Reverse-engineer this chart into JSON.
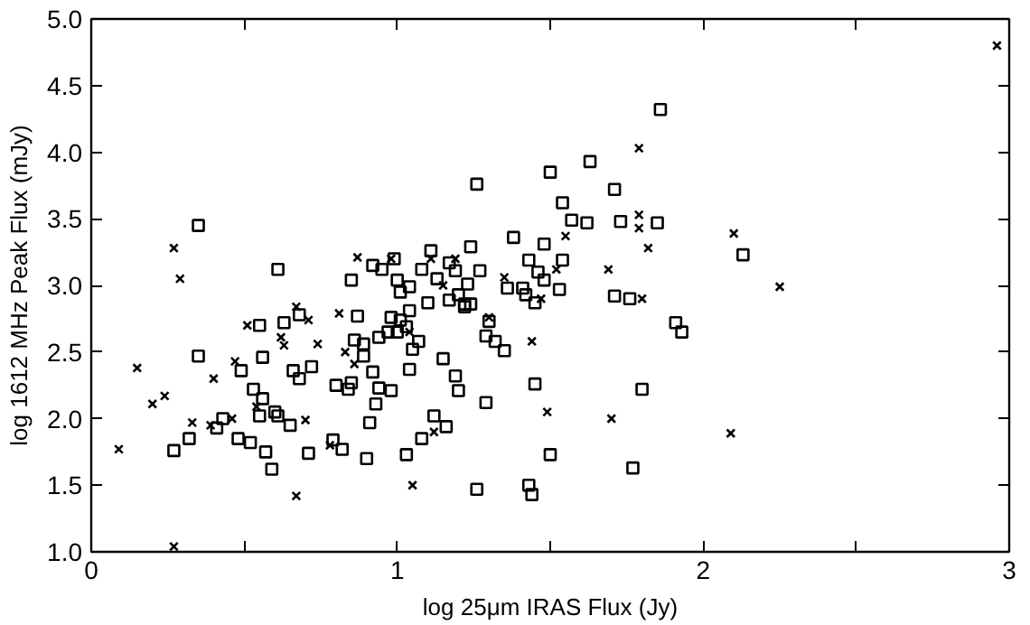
{
  "chart_data": {
    "type": "scatter",
    "xlabel": "log 25μm IRAS Flux (Jy)",
    "ylabel": "log 1612 MHz Peak Flux (mJy)",
    "xlim": [
      0,
      3
    ],
    "ylim": [
      1,
      5
    ],
    "xticks": [
      0,
      {
        "value": 0.5,
        "label": null
      },
      1,
      {
        "value": 1.5,
        "label": null
      },
      2,
      {
        "value": 2.5,
        "label": null
      },
      3
    ],
    "yticks": [
      {
        "value": 1,
        "label": "1.0"
      },
      {
        "value": 1.5,
        "label": "1.5"
      },
      {
        "value": 2,
        "label": "2.0"
      },
      {
        "value": 2.5,
        "label": "2.5"
      },
      {
        "value": 3,
        "label": "3.0"
      },
      {
        "value": 3.5,
        "label": "3.5"
      },
      {
        "value": 4,
        "label": "4.0"
      },
      {
        "value": 4.5,
        "label": "4.5"
      },
      {
        "value": 5,
        "label": "5.0"
      }
    ],
    "grid": false,
    "series": [
      {
        "color": "#000000",
        "marker": "cross",
        "x": [
          0.09,
          0.15,
          0.2,
          0.24,
          0.27,
          0.29,
          0.27,
          0.33,
          0.39,
          0.4,
          0.47,
          0.46,
          0.51,
          0.54,
          0.62,
          0.63,
          0.67,
          0.71,
          0.67,
          0.7,
          0.74,
          0.81,
          0.78,
          0.83,
          0.86,
          0.87,
          0.98,
          1.04,
          1.05,
          1.11,
          1.12,
          1.15,
          1.19,
          1.3,
          1.35,
          1.44,
          1.47,
          1.49,
          1.52,
          1.55,
          1.69,
          1.7,
          1.79,
          1.79,
          1.79,
          1.8,
          1.82,
          2.1,
          2.09,
          2.25,
          2.96
        ],
        "values": [
          1.77,
          2.38,
          2.11,
          2.17,
          3.28,
          3.05,
          1.04,
          1.97,
          1.95,
          2.3,
          2.43,
          2.0,
          2.7,
          2.09,
          2.61,
          2.55,
          2.84,
          2.74,
          1.42,
          1.99,
          2.56,
          2.79,
          1.8,
          2.5,
          2.41,
          3.21,
          3.2,
          2.65,
          1.5,
          3.2,
          1.9,
          3.0,
          3.2,
          2.76,
          3.06,
          2.58,
          2.9,
          2.05,
          3.12,
          3.37,
          3.12,
          2.0,
          4.03,
          3.53,
          3.43,
          2.9,
          3.28,
          3.39,
          1.89,
          2.99,
          4.8
        ]
      },
      {
        "color": "#000000",
        "marker": "square",
        "x": [
          0.27,
          0.32,
          0.35,
          0.35,
          0.41,
          0.43,
          0.49,
          0.48,
          0.52,
          0.53,
          0.55,
          0.56,
          0.55,
          0.56,
          0.57,
          0.59,
          0.6,
          0.61,
          0.61,
          0.63,
          0.65,
          0.66,
          0.68,
          0.68,
          0.71,
          0.72,
          0.79,
          0.8,
          0.82,
          0.84,
          0.85,
          0.85,
          0.86,
          0.87,
          0.89,
          0.89,
          0.9,
          0.91,
          0.92,
          0.92,
          0.93,
          0.94,
          0.94,
          0.95,
          0.97,
          0.98,
          0.98,
          0.99,
          1.0,
          1.0,
          1.01,
          1.01,
          1.03,
          1.04,
          1.03,
          1.04,
          1.04,
          1.05,
          1.07,
          1.08,
          1.08,
          1.1,
          1.11,
          1.12,
          1.13,
          1.15,
          1.16,
          1.17,
          1.17,
          1.19,
          1.19,
          1.2,
          1.2,
          1.22,
          1.22,
          1.23,
          1.24,
          1.24,
          1.26,
          1.26,
          1.27,
          1.29,
          1.29,
          1.3,
          1.32,
          1.35,
          1.36,
          1.38,
          1.41,
          1.43,
          1.42,
          1.43,
          1.44,
          1.45,
          1.46,
          1.45,
          1.48,
          1.48,
          1.5,
          1.5,
          1.53,
          1.54,
          1.54,
          1.57,
          1.62,
          1.63,
          1.71,
          1.71,
          1.73,
          1.76,
          1.77,
          1.8,
          1.85,
          1.86,
          1.91,
          1.93,
          2.13
        ],
        "values": [
          1.76,
          1.85,
          2.47,
          3.45,
          1.93,
          2.0,
          2.36,
          1.85,
          1.82,
          2.22,
          2.7,
          2.15,
          2.02,
          2.46,
          1.75,
          1.62,
          2.05,
          3.12,
          2.02,
          2.72,
          1.95,
          2.36,
          2.3,
          2.78,
          1.74,
          2.39,
          1.84,
          2.25,
          1.77,
          2.22,
          2.27,
          3.04,
          2.59,
          2.77,
          2.47,
          2.56,
          1.7,
          1.97,
          3.15,
          2.35,
          2.11,
          2.61,
          2.23,
          3.12,
          2.65,
          2.21,
          2.76,
          3.2,
          2.65,
          3.04,
          2.95,
          2.74,
          2.69,
          2.99,
          1.73,
          2.37,
          2.81,
          2.52,
          2.58,
          1.85,
          3.12,
          2.87,
          3.26,
          2.02,
          3.05,
          2.45,
          1.94,
          3.17,
          2.89,
          3.11,
          2.32,
          2.93,
          2.21,
          2.86,
          2.84,
          3.01,
          3.29,
          2.86,
          3.76,
          1.47,
          3.11,
          2.62,
          2.12,
          2.73,
          2.58,
          2.51,
          2.98,
          3.36,
          2.98,
          3.19,
          2.93,
          1.5,
          1.43,
          2.26,
          3.1,
          2.87,
          3.04,
          3.31,
          3.85,
          1.73,
          2.97,
          3.19,
          3.62,
          3.49,
          3.47,
          3.93,
          2.92,
          3.72,
          3.48,
          2.9,
          1.63,
          2.22,
          3.47,
          4.32,
          2.72,
          2.65,
          3.23
        ]
      }
    ]
  }
}
